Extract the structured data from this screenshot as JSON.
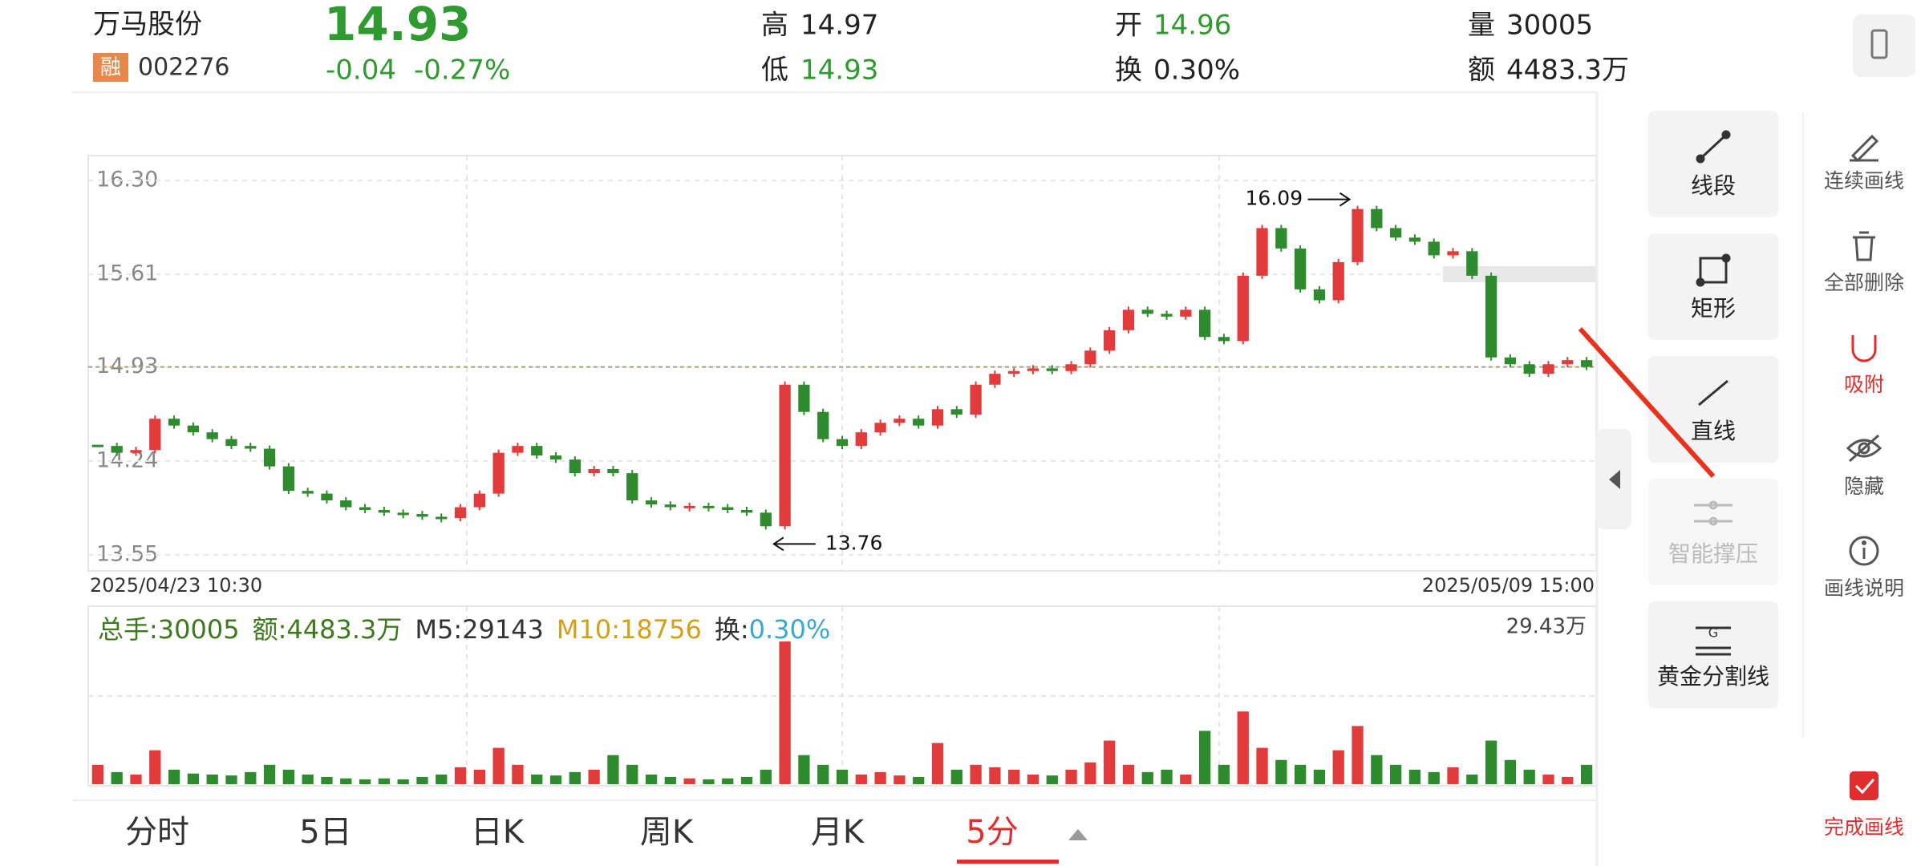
{
  "header": {
    "name": "万马股份",
    "badge": "融",
    "code": "002276",
    "price": "14.93",
    "change": "-0.04",
    "change_pct": "-0.27%",
    "high_label": "高",
    "high": "14.97",
    "low_label": "低",
    "low": "14.93",
    "open_label": "开",
    "open": "14.96",
    "turnover_label": "换",
    "turnover": "0.30%",
    "volume_label": "量",
    "volume": "30005",
    "amount_label": "额",
    "amount": "4483.3万"
  },
  "chart_data": [
    {
      "type": "candlestick",
      "up_color": "#e23b3b",
      "down_color": "#2e8b2e",
      "values": [
        14.35,
        14.3,
        14.32,
        14.55,
        14.5,
        14.45,
        14.4,
        14.35,
        14.33,
        14.2,
        14.02,
        14.0,
        13.95,
        13.9,
        13.88,
        13.86,
        13.85,
        13.83,
        13.82,
        13.9,
        14.0,
        14.3,
        14.35,
        14.28,
        14.25,
        14.15,
        14.18,
        14.15,
        13.95,
        13.92,
        13.9,
        13.91,
        13.9,
        13.88,
        13.86,
        13.76,
        14.8,
        14.6,
        14.4,
        14.35,
        14.45,
        14.52,
        14.55,
        14.5,
        14.62,
        14.58,
        14.8,
        14.88,
        14.9,
        14.92,
        14.9,
        14.95,
        15.05,
        15.2,
        15.35,
        15.32,
        15.3,
        15.35,
        15.15,
        15.12,
        15.6,
        15.95,
        15.8,
        15.5,
        15.42,
        15.7,
        16.09,
        15.95,
        15.88,
        15.85,
        15.75,
        15.78,
        15.6,
        15.0,
        14.95,
        14.88,
        14.95,
        14.98,
        14.93
      ],
      "ylim": [
        13.55,
        16.3
      ],
      "yticks": [
        {
          "value": 16.3,
          "label": "16.30"
        },
        15.61,
        14.93,
        14.24,
        13.55
      ],
      "reference_line": 14.93,
      "high_mark": 16.09,
      "low_mark": 13.76,
      "x_start": "2025/04/23 10:30",
      "x_end": "2025/05/09 15:00"
    },
    {
      "type": "bar",
      "values": [
        40000,
        25000,
        20000,
        70000,
        30000,
        22000,
        20000,
        18000,
        25000,
        40000,
        30000,
        20000,
        15000,
        12000,
        10000,
        12000,
        10000,
        15000,
        20000,
        35000,
        30000,
        75000,
        40000,
        20000,
        18000,
        25000,
        30000,
        60000,
        40000,
        20000,
        15000,
        12000,
        10000,
        12000,
        15000,
        30000,
        294300,
        60000,
        40000,
        30000,
        20000,
        25000,
        18000,
        15000,
        85000,
        30000,
        40000,
        35000,
        30000,
        20000,
        18000,
        30000,
        45000,
        90000,
        40000,
        25000,
        30000,
        20000,
        110000,
        40000,
        150000,
        75000,
        50000,
        40000,
        30000,
        70000,
        120000,
        60000,
        40000,
        30000,
        25000,
        35000,
        20000,
        90000,
        50000,
        30000,
        20000,
        15000,
        40000
      ],
      "ylim": [
        0,
        294300
      ],
      "yticks": [
        {
          "value": 294300,
          "label": "29.43万"
        }
      ],
      "legend": [
        {
          "text": "总手:30005",
          "color": "#3d7a1e"
        },
        {
          "text": "额:4483.3万",
          "color": "#3d7a1e"
        },
        {
          "text": "M5:29143",
          "color": "#333333"
        },
        {
          "text": "M10:18756",
          "color": "#d4a017"
        },
        {
          "text": "换:",
          "color": "#333333"
        },
        {
          "text": "0.30%",
          "color": "#3aa6d6"
        }
      ]
    }
  ],
  "tabs": [
    "分时",
    "5日",
    "日K",
    "周K",
    "月K",
    "5分"
  ],
  "tools": [
    "线段",
    "矩形",
    "直线",
    "智能撑压",
    "黄金分割线"
  ],
  "side_tools": [
    "连续画线",
    "全部删除",
    "吸附",
    "隐藏",
    "画线说明"
  ],
  "finish": "完成画线"
}
